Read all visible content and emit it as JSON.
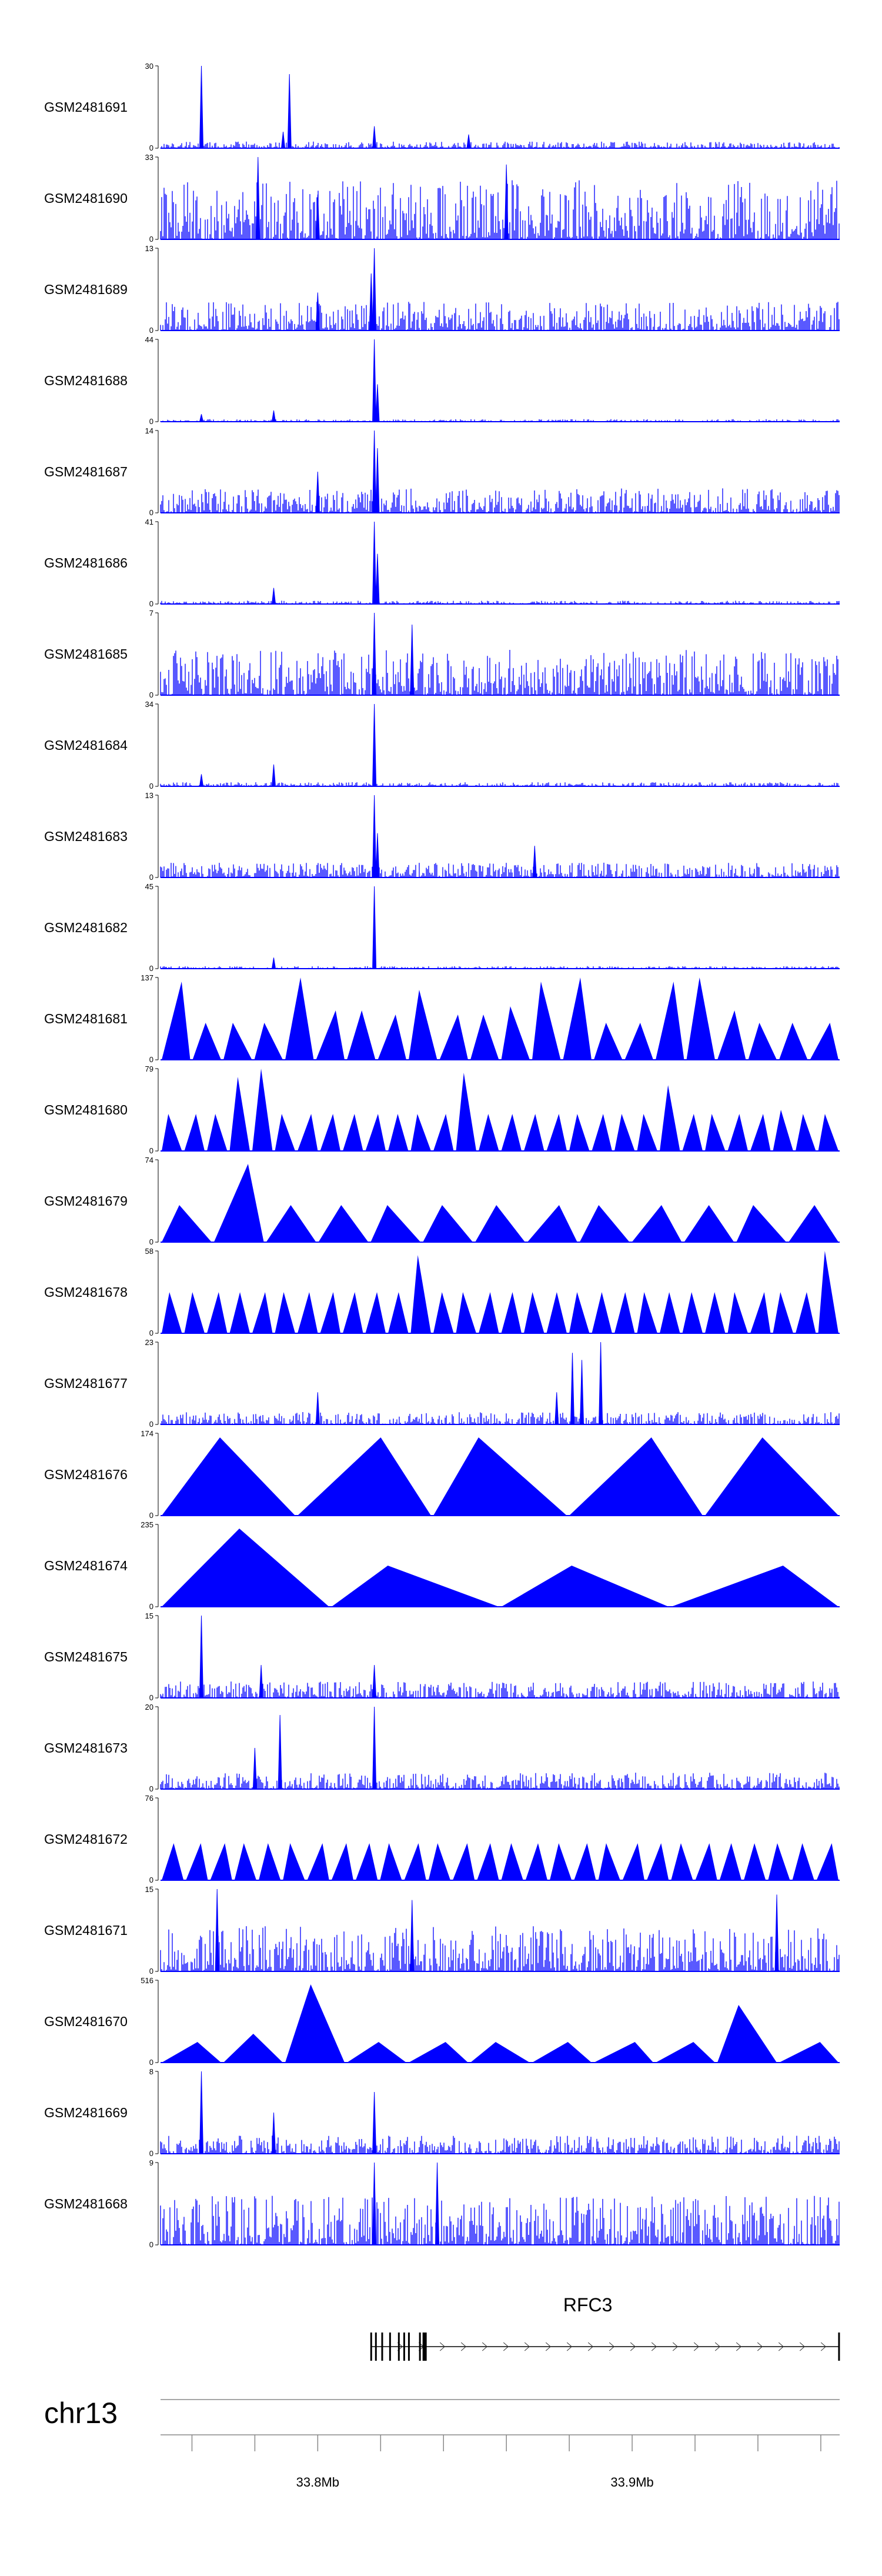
{
  "chart_data": {
    "type": "area",
    "title": "",
    "genome_range": [
      33750000,
      33966000
    ],
    "chromosome": "chr13",
    "xlabel": "",
    "ylabel": "",
    "axis_ticks": [
      {
        "pos": 33800000,
        "label": "33.8Mb"
      },
      {
        "pos": 33900000,
        "label": "33.9Mb"
      }
    ],
    "minor_ticks": [
      33760000,
      33780000,
      33800000,
      33820000,
      33840000,
      33860000,
      33880000,
      33900000,
      33920000,
      33940000,
      33960000
    ],
    "gene": {
      "name": "RFC3",
      "start": 33817000,
      "end": 33966000,
      "strand": "+",
      "exons": [
        33817000,
        33818500,
        33820500,
        33823000,
        33825800,
        33827500,
        33829000,
        33832500,
        33834000,
        33965800
      ]
    },
    "colors": {
      "signal": "#0000ff",
      "axis": "#888888",
      "gene": "#000000"
    },
    "tracks": [
      {
        "name": "GSM2481691",
        "ymax": 30,
        "pattern": "spikes",
        "noise": 0.08,
        "peaks": [
          [
            33763000,
            30
          ],
          [
            33791000,
            27
          ],
          [
            33789000,
            6
          ],
          [
            33818000,
            8
          ],
          [
            33848000,
            5
          ]
        ]
      },
      {
        "name": "GSM2481690",
        "ymax": 33,
        "pattern": "dense",
        "noise": 0.45,
        "peaks": [
          [
            33781000,
            33
          ],
          [
            33860000,
            30
          ],
          [
            33800000,
            18
          ]
        ]
      },
      {
        "name": "GSM2481689",
        "ymax": 13,
        "pattern": "spikes",
        "noise": 0.35,
        "peaks": [
          [
            33818000,
            13
          ],
          [
            33817000,
            9
          ],
          [
            33800000,
            6
          ]
        ]
      },
      {
        "name": "GSM2481688",
        "ymax": 44,
        "pattern": "spikes",
        "noise": 0.03,
        "peaks": [
          [
            33818000,
            44
          ],
          [
            33819000,
            20
          ],
          [
            33786000,
            6
          ],
          [
            33763000,
            4
          ]
        ]
      },
      {
        "name": "GSM2481687",
        "ymax": 14,
        "pattern": "spikes",
        "noise": 0.3,
        "peaks": [
          [
            33818000,
            14
          ],
          [
            33819000,
            11
          ],
          [
            33800000,
            7
          ]
        ]
      },
      {
        "name": "GSM2481686",
        "ymax": 41,
        "pattern": "spikes",
        "noise": 0.04,
        "peaks": [
          [
            33818000,
            41
          ],
          [
            33819000,
            25
          ],
          [
            33786000,
            8
          ]
        ]
      },
      {
        "name": "GSM2481685",
        "ymax": 7,
        "pattern": "spikes",
        "noise": 0.55,
        "peaks": [
          [
            33818000,
            7
          ],
          [
            33830000,
            6
          ]
        ]
      },
      {
        "name": "GSM2481684",
        "ymax": 34,
        "pattern": "spikes",
        "noise": 0.05,
        "peaks": [
          [
            33818000,
            34
          ],
          [
            33786000,
            9
          ],
          [
            33763000,
            5
          ]
        ]
      },
      {
        "name": "GSM2481683",
        "ymax": 13,
        "pattern": "spikes",
        "noise": 0.18,
        "peaks": [
          [
            33818000,
            13
          ],
          [
            33819000,
            7
          ],
          [
            33869000,
            5
          ]
        ]
      },
      {
        "name": "GSM2481682",
        "ymax": 45,
        "pattern": "spikes",
        "noise": 0.03,
        "peaks": [
          [
            33818000,
            45
          ],
          [
            33786000,
            6
          ]
        ]
      },
      {
        "name": "GSM2481681",
        "ymax": 137,
        "pattern": "triangles",
        "heights": [
          0.95,
          0.45,
          0.45,
          0.45,
          1.0,
          0.6,
          0.6,
          0.55,
          0.85,
          0.55,
          0.55,
          0.65,
          0.95,
          1.0,
          0.45,
          0.45,
          0.95,
          1.0,
          0.6,
          0.45,
          0.45,
          0.45
        ]
      },
      {
        "name": "GSM2481680",
        "ymax": 79,
        "pattern": "triangles",
        "heights": [
          0.45,
          0.45,
          0.45,
          0.9,
          1.0,
          0.45,
          0.45,
          0.45,
          0.45,
          0.45,
          0.45,
          0.45,
          0.45,
          0.95,
          0.45,
          0.45,
          0.45,
          0.45,
          0.45,
          0.45,
          0.45,
          0.45,
          0.8,
          0.45,
          0.45,
          0.45,
          0.45,
          0.5,
          0.45,
          0.45
        ]
      },
      {
        "name": "GSM2481679",
        "ymax": 74,
        "pattern": "triangles",
        "heights": [
          0.45,
          0.95,
          0.45,
          0.45,
          0.45,
          0.45,
          0.45,
          0.45,
          0.45,
          0.45,
          0.45,
          0.45,
          0.45
        ]
      },
      {
        "name": "GSM2481678",
        "ymax": 58,
        "pattern": "triangles",
        "heights": [
          0.5,
          0.5,
          0.5,
          0.5,
          0.5,
          0.5,
          0.5,
          0.5,
          0.5,
          0.5,
          0.5,
          0.95,
          0.5,
          0.5,
          0.5,
          0.5,
          0.5,
          0.5,
          0.5,
          0.5,
          0.5,
          0.5,
          0.5,
          0.5,
          0.5,
          0.5,
          0.5,
          0.5,
          0.5,
          1.0
        ]
      },
      {
        "name": "GSM2481677",
        "ymax": 23,
        "pattern": "spikes",
        "noise": 0.15,
        "peaks": [
          [
            33890000,
            23
          ],
          [
            33881000,
            20
          ],
          [
            33884000,
            18
          ],
          [
            33876000,
            9
          ],
          [
            33800000,
            9
          ]
        ]
      },
      {
        "name": "GSM2481676",
        "ymax": 174,
        "pattern": "triangles",
        "heights": [
          0.95,
          0.95,
          0.95,
          0.95,
          0.95
        ]
      },
      {
        "name": "GSM2481674",
        "ymax": 235,
        "pattern": "triangles",
        "heights": [
          0.95,
          0.5,
          0.5,
          0.5
        ]
      },
      {
        "name": "GSM2481675",
        "ymax": 15,
        "pattern": "spikes",
        "noise": 0.2,
        "peaks": [
          [
            33763000,
            15
          ],
          [
            33782000,
            6
          ],
          [
            33818000,
            6
          ]
        ]
      },
      {
        "name": "GSM2481673",
        "ymax": 20,
        "pattern": "spikes",
        "noise": 0.2,
        "peaks": [
          [
            33818000,
            20
          ],
          [
            33788000,
            18
          ],
          [
            33780000,
            10
          ]
        ]
      },
      {
        "name": "GSM2481672",
        "ymax": 76,
        "pattern": "triangles",
        "heights": [
          0.45,
          0.45,
          0.45,
          0.45,
          0.45,
          0.45,
          0.45,
          0.45,
          0.45,
          0.45,
          0.45,
          0.45,
          0.45,
          0.45,
          0.45,
          0.45,
          0.45,
          0.45,
          0.45,
          0.45,
          0.45,
          0.45,
          0.45,
          0.45,
          0.45,
          0.45,
          0.45,
          0.45
        ]
      },
      {
        "name": "GSM2481671",
        "ymax": 15,
        "pattern": "spikes",
        "noise": 0.55,
        "peaks": [
          [
            33768000,
            15
          ],
          [
            33946000,
            14
          ],
          [
            33830000,
            13
          ]
        ]
      },
      {
        "name": "GSM2481670",
        "ymax": 516,
        "pattern": "triangles",
        "heights": [
          0.25,
          0.35,
          0.95,
          0.25,
          0.25,
          0.25,
          0.25,
          0.25,
          0.25,
          0.7,
          0.25
        ]
      },
      {
        "name": "GSM2481669",
        "ymax": 8,
        "pattern": "spikes",
        "noise": 0.22,
        "peaks": [
          [
            33763000,
            8
          ],
          [
            33818000,
            6
          ],
          [
            33786000,
            4
          ]
        ]
      },
      {
        "name": "GSM2481668",
        "ymax": 9,
        "pattern": "spikes",
        "noise": 0.6,
        "peaks": [
          [
            33818000,
            9
          ],
          [
            33838000,
            9
          ]
        ]
      }
    ]
  }
}
